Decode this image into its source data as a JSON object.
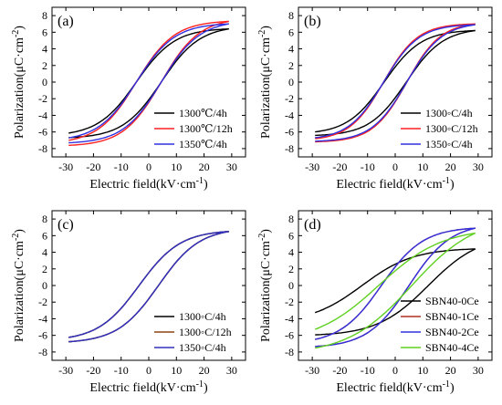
{
  "chart_data": [
    {
      "type": "line",
      "panel_label": "(a)",
      "xlabel": "Electric field(kV·cm",
      "xlabel_sup": "-1",
      "xlabel_end": ")",
      "ylabel": "Polarization(μC·cm",
      "ylabel_sup": "-2",
      "ylabel_end": ")",
      "xlim": [
        -35,
        35
      ],
      "ylim": [
        -9,
        9
      ],
      "xticks": [
        -30,
        -20,
        -10,
        0,
        10,
        20,
        30
      ],
      "yticks": [
        -8,
        -6,
        -4,
        -2,
        0,
        2,
        4,
        6,
        8
      ],
      "legend_position": "lower-right",
      "series": [
        {
          "name": "1300℃/4h",
          "color": "#000000",
          "emax": 29,
          "pmax": 6.4,
          "pr": 2.0,
          "ec": 4.5
        },
        {
          "name": "1300℃/12h",
          "color": "#ff2020",
          "emax": 29,
          "pmax": 7.3,
          "pr": 2.3,
          "ec": 4.5
        },
        {
          "name": "1350℃/4h",
          "color": "#3030e0",
          "emax": 29,
          "pmax": 7.0,
          "pr": 2.2,
          "ec": 4.5
        }
      ]
    },
    {
      "type": "line",
      "panel_label": "(b)",
      "xlabel": "Electric field(kV·cm",
      "xlabel_sup": "-1",
      "xlabel_end": ")",
      "ylabel": "Polarization(μC·cm",
      "ylabel_sup": "-2",
      "ylabel_end": ")",
      "xlim": [
        -35,
        35
      ],
      "ylim": [
        -9,
        9
      ],
      "xticks": [
        -30,
        -20,
        -10,
        0,
        10,
        20,
        30
      ],
      "yticks": [
        -8,
        -6,
        -4,
        -2,
        0,
        2,
        4,
        6,
        8
      ],
      "legend_position": "lower-right",
      "series": [
        {
          "name": "1300◦C/4h",
          "color": "#000000",
          "emax": 29,
          "pmax": 6.2,
          "pr": 1.8,
          "ec": 4.0
        },
        {
          "name": "1300◦C/12h",
          "color": "#ff2020",
          "emax": 29,
          "pmax": 7.0,
          "pr": 2.3,
          "ec": 4.2
        },
        {
          "name": "1350◦C/4h",
          "color": "#3030e0",
          "emax": 29,
          "pmax": 6.9,
          "pr": 2.2,
          "ec": 4.2
        }
      ]
    },
    {
      "type": "line",
      "panel_label": "(c)",
      "xlabel": "Electric field(kV·cm",
      "xlabel_sup": "-1",
      "xlabel_end": ")",
      "ylabel": "Polarization(μC·cm",
      "ylabel_sup": "-2",
      "ylabel_end": ")",
      "xlim": [
        -35,
        35
      ],
      "ylim": [
        -9,
        9
      ],
      "xticks": [
        -30,
        -20,
        -10,
        0,
        10,
        20,
        30
      ],
      "yticks": [
        -8,
        -6,
        -4,
        -2,
        0,
        2,
        4,
        6,
        8
      ],
      "legend_position": "lower-right",
      "series": [
        {
          "name": "1300◦C/4h",
          "color": "#000000",
          "emax": 29,
          "pmax": 6.5,
          "pr": 1.5,
          "ec": 3.5
        },
        {
          "name": "1300◦C/12h",
          "color": "#8b4513",
          "emax": 29,
          "pmax": 6.5,
          "pr": 1.5,
          "ec": 3.5
        },
        {
          "name": "1350◦C/4h",
          "color": "#3030c0",
          "emax": 29,
          "pmax": 6.5,
          "pr": 1.5,
          "ec": 3.5
        }
      ]
    },
    {
      "type": "line",
      "panel_label": "(d)",
      "xlabel": "Electric field(kV·cm",
      "xlabel_sup": "-1",
      "xlabel_end": ")",
      "ylabel": "Polarization(μC·cm",
      "ylabel_sup": "-2",
      "ylabel_end": ")",
      "xlim": [
        -35,
        35
      ],
      "ylim": [
        -9,
        9
      ],
      "xticks": [
        -30,
        -20,
        -10,
        0,
        10,
        20,
        30
      ],
      "yticks": [
        -8,
        -6,
        -4,
        -2,
        0,
        2,
        4,
        6,
        8
      ],
      "legend_position": "lower-right",
      "series": [
        {
          "name": "SBN40-0Ce",
          "color": "#000000",
          "emax": 29,
          "pmax": 4.4,
          "pr": 2.5,
          "ec": 12
        },
        {
          "name": "SBN40-1Ce",
          "color": "#b03020",
          "emax": 29,
          "pmax": 6.9,
          "pr": 2.2,
          "ec": 5
        },
        {
          "name": "SBN40-2Ce",
          "color": "#3030e0",
          "emax": 29,
          "pmax": 6.9,
          "pr": 2.2,
          "ec": 5
        },
        {
          "name": "SBN40-4Ce",
          "color": "#60d020",
          "emax": 29,
          "pmax": 6.3,
          "pr": 1.6,
          "ec": 6
        }
      ]
    }
  ]
}
